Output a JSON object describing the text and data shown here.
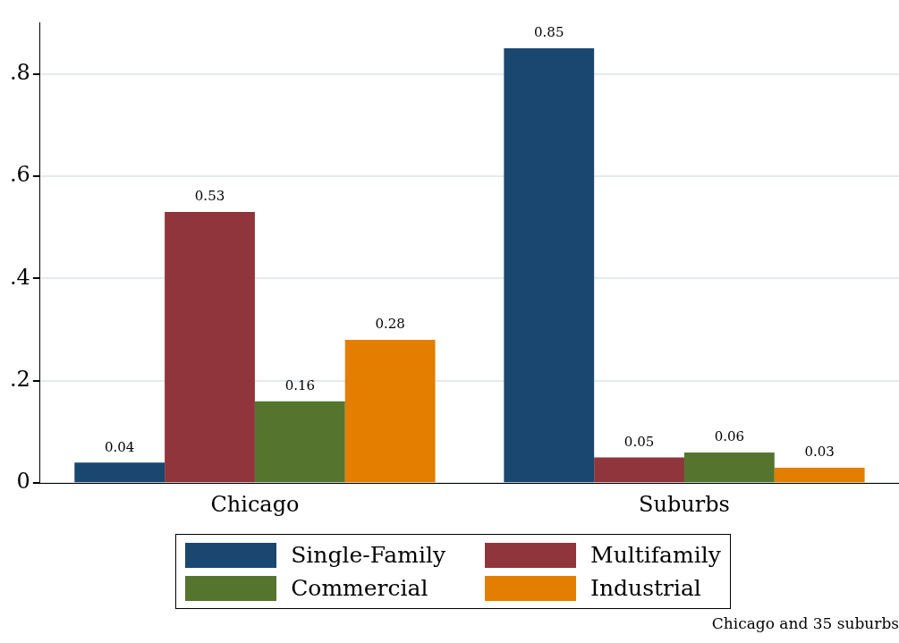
{
  "chart_data": {
    "type": "bar",
    "categories": [
      "Chicago",
      "Suburbs"
    ],
    "series": [
      {
        "name": "Single-Family",
        "color": "#1a476f",
        "values": [
          0.04,
          0.85
        ]
      },
      {
        "name": "Multifamily",
        "color": "#90353b",
        "values": [
          0.53,
          0.05
        ]
      },
      {
        "name": "Commercial",
        "color": "#55752f",
        "values": [
          0.16,
          0.06
        ]
      },
      {
        "name": "Industrial",
        "color": "#e37e00",
        "values": [
          0.28,
          0.03
        ]
      }
    ],
    "ylim": [
      0,
      0.9
    ],
    "yticks": [
      0,
      {
        "value": 0.2,
        "label": ".2"
      },
      {
        "value": 0.4,
        "label": ".4"
      },
      {
        "value": 0.6,
        "label": ".6"
      },
      {
        "value": 0.8,
        "label": ".8"
      }
    ],
    "grid": "y",
    "legend": "bottom",
    "data_labels": true,
    "annotations": [
      "Chicago and 35 suburbs"
    ]
  }
}
